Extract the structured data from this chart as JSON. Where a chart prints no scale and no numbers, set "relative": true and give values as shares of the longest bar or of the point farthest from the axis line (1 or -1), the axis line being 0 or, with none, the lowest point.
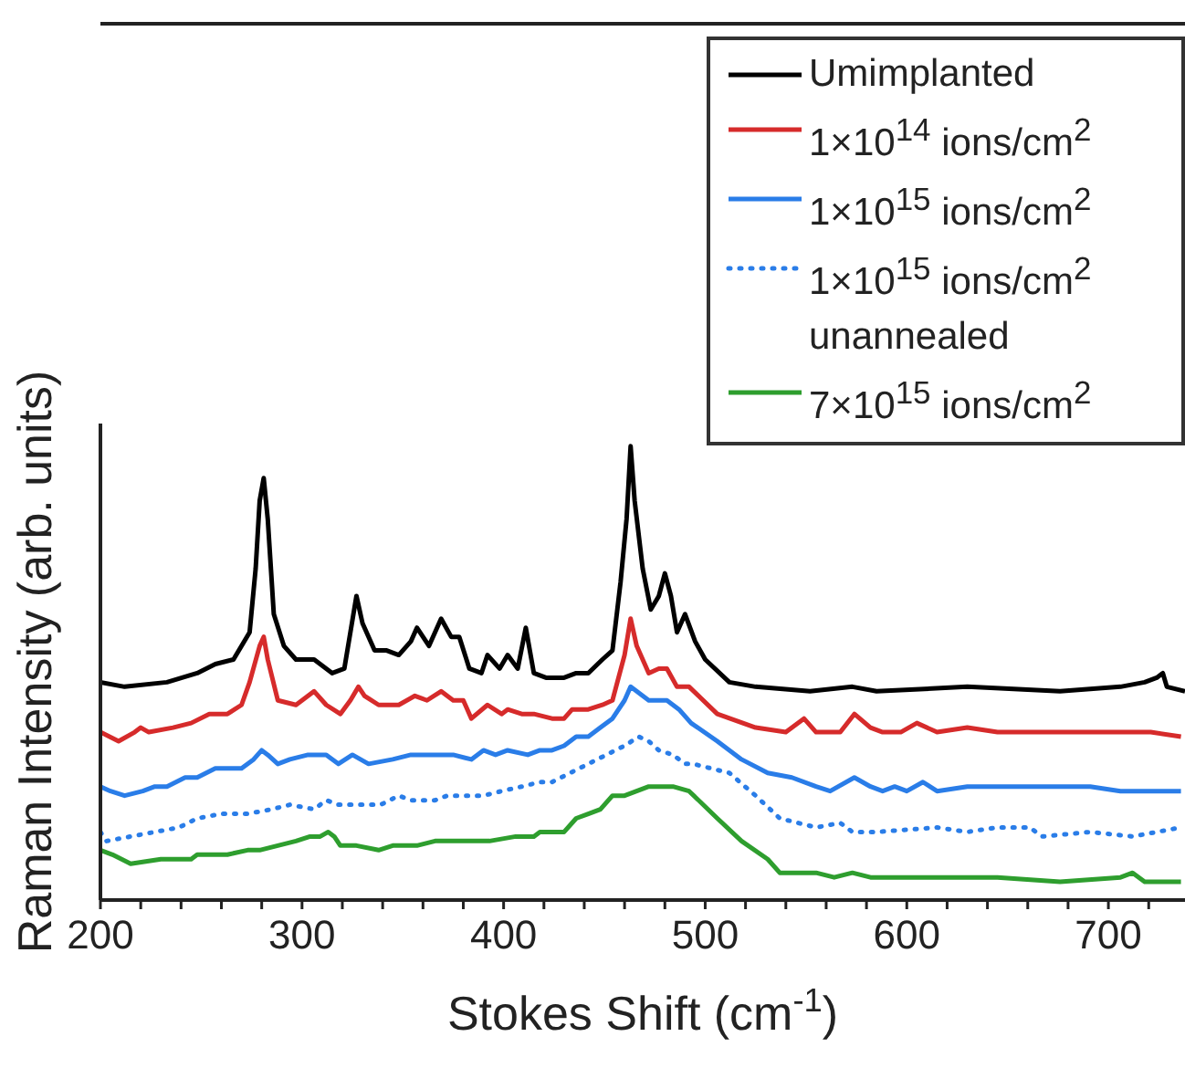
{
  "chart_data": {
    "type": "line",
    "xlabel": "Stokes Shift (cm$^{-1}$)",
    "ylabel": "Raman Intensity (arb. units)",
    "relative": true,
    "tick_labels": "x",
    "marker": "none",
    "legend": "top right",
    "xlim": [
      200,
      738
    ],
    "xticks": [
      200,
      {
        "value": 220,
        "label": null
      },
      {
        "value": 240,
        "label": null
      },
      {
        "value": 260,
        "label": null
      },
      {
        "value": 280,
        "label": null
      },
      300,
      {
        "value": 320,
        "label": null
      },
      {
        "value": 340,
        "label": null
      },
      {
        "value": 360,
        "label": null
      },
      {
        "value": 380,
        "label": null
      },
      400,
      {
        "value": 420,
        "label": null
      },
      {
        "value": 440,
        "label": null
      },
      {
        "value": 460,
        "label": null
      },
      {
        "value": 480,
        "label": null
      },
      500,
      {
        "value": 520,
        "label": null
      },
      {
        "value": 540,
        "label": null
      },
      {
        "value": 560,
        "label": null
      },
      {
        "value": 580,
        "label": null
      },
      600,
      {
        "value": 620,
        "label": null
      },
      {
        "value": 640,
        "label": null
      },
      {
        "value": 660,
        "label": null
      },
      {
        "value": 680,
        "label": null
      },
      700,
      {
        "value": 720,
        "label": null
      }
    ],
    "series": [
      {
        "name": "Umimplanted",
        "color": "#000000",
        "line_style": "solid",
        "x": [
          200,
          212,
          233,
          248,
          257,
          266,
          274,
          277,
          279,
          281,
          283,
          286,
          291,
          297,
          306,
          315,
          321,
          324,
          327,
          330,
          336,
          342,
          348,
          354,
          357,
          363,
          369,
          374,
          378,
          383,
          389,
          392,
          398,
          402,
          407,
          411,
          415,
          421,
          430,
          436,
          442,
          449,
          454,
          458,
          461,
          463,
          465,
          469,
          473,
          477,
          480,
          483,
          486,
          490,
          495,
          500,
          512,
          525,
          552,
          573,
          585,
          630,
          676,
          706,
          718,
          724,
          727,
          729,
          738
        ],
        "values": [
          0.48,
          0.47,
          0.48,
          0.5,
          0.52,
          0.53,
          0.59,
          0.73,
          0.88,
          0.93,
          0.84,
          0.63,
          0.56,
          0.53,
          0.53,
          0.5,
          0.51,
          0.59,
          0.67,
          0.61,
          0.55,
          0.55,
          0.54,
          0.57,
          0.6,
          0.56,
          0.62,
          0.58,
          0.58,
          0.51,
          0.5,
          0.54,
          0.51,
          0.54,
          0.51,
          0.6,
          0.5,
          0.49,
          0.49,
          0.5,
          0.5,
          0.53,
          0.55,
          0.7,
          0.84,
          1.0,
          0.88,
          0.73,
          0.64,
          0.67,
          0.72,
          0.67,
          0.59,
          0.63,
          0.57,
          0.53,
          0.48,
          0.47,
          0.46,
          0.47,
          0.46,
          0.47,
          0.46,
          0.47,
          0.48,
          0.49,
          0.5,
          0.47,
          0.46
        ]
      },
      {
        "name": "1×10$^{14}$ ions/cm$^{2}$",
        "color": "#d62b2b",
        "line_style": "solid",
        "x": [
          200,
          209,
          217,
          220,
          224,
          236,
          245,
          254,
          263,
          270,
          274,
          279,
          281,
          283,
          288,
          297,
          306,
          312,
          319,
          324,
          328,
          331,
          338,
          348,
          356,
          362,
          369,
          375,
          380,
          384,
          392,
          399,
          402,
          409,
          415,
          424,
          430,
          434,
          442,
          449,
          454,
          460,
          463,
          466,
          472,
          477,
          481,
          486,
          492,
          506,
          525,
          540,
          549,
          555,
          567,
          574,
          582,
          588,
          597,
          605,
          615,
          630,
          645,
          661,
          676,
          691,
          706,
          721,
          736
        ],
        "values": [
          0.37,
          0.35,
          0.37,
          0.38,
          0.37,
          0.38,
          0.39,
          0.41,
          0.41,
          0.43,
          0.48,
          0.56,
          0.58,
          0.53,
          0.44,
          0.43,
          0.46,
          0.43,
          0.41,
          0.44,
          0.47,
          0.45,
          0.43,
          0.43,
          0.45,
          0.44,
          0.46,
          0.44,
          0.44,
          0.4,
          0.43,
          0.41,
          0.42,
          0.41,
          0.41,
          0.4,
          0.4,
          0.42,
          0.42,
          0.43,
          0.44,
          0.54,
          0.62,
          0.56,
          0.5,
          0.51,
          0.51,
          0.47,
          0.47,
          0.41,
          0.38,
          0.37,
          0.4,
          0.37,
          0.37,
          0.41,
          0.38,
          0.37,
          0.37,
          0.39,
          0.37,
          0.38,
          0.37,
          0.37,
          0.37,
          0.37,
          0.37,
          0.37,
          0.36
        ]
      },
      {
        "name": "1×10$^{15}$ ions/cm$^{2}$",
        "color": "#2a7de8",
        "line_style": "solid",
        "x": [
          200,
          205,
          212,
          221,
          227,
          233,
          242,
          248,
          257,
          263,
          270,
          276,
          280,
          283,
          288,
          294,
          303,
          312,
          318,
          325,
          333,
          345,
          354,
          363,
          375,
          384,
          390,
          396,
          402,
          412,
          418,
          424,
          430,
          436,
          442,
          448,
          454,
          460,
          463,
          466,
          472,
          478,
          481,
          487,
          493,
          506,
          518,
          531,
          543,
          555,
          562,
          574,
          582,
          588,
          594,
          600,
          608,
          615,
          630,
          645,
          661,
          676,
          691,
          706,
          721,
          736
        ],
        "values": [
          0.25,
          0.24,
          0.23,
          0.24,
          0.25,
          0.25,
          0.27,
          0.27,
          0.29,
          0.29,
          0.29,
          0.31,
          0.33,
          0.32,
          0.3,
          0.31,
          0.32,
          0.32,
          0.3,
          0.32,
          0.3,
          0.31,
          0.32,
          0.32,
          0.32,
          0.31,
          0.33,
          0.32,
          0.33,
          0.32,
          0.33,
          0.33,
          0.34,
          0.36,
          0.36,
          0.38,
          0.4,
          0.44,
          0.47,
          0.46,
          0.44,
          0.44,
          0.44,
          0.42,
          0.39,
          0.35,
          0.31,
          0.28,
          0.27,
          0.25,
          0.24,
          0.27,
          0.25,
          0.24,
          0.25,
          0.24,
          0.26,
          0.24,
          0.25,
          0.25,
          0.25,
          0.25,
          0.25,
          0.24,
          0.24,
          0.24
        ]
      },
      {
        "name": "1×10$^{15}$ ions/cm$^{2}$ unannealed",
        "color": "#2a7de8",
        "line_style": "dotted",
        "x": [
          200,
          203,
          215,
          227,
          239,
          248,
          260,
          273,
          285,
          294,
          306,
          312,
          318,
          333,
          339,
          348,
          354,
          366,
          372,
          381,
          390,
          399,
          409,
          418,
          424,
          433,
          442,
          451,
          460,
          467,
          472,
          477,
          484,
          490,
          494,
          512,
          525,
          537,
          546,
          555,
          567,
          573,
          585,
          615,
          630,
          645,
          661,
          667,
          691,
          712,
          736
        ],
        "values": [
          0.15,
          0.13,
          0.14,
          0.15,
          0.16,
          0.18,
          0.19,
          0.19,
          0.2,
          0.21,
          0.2,
          0.22,
          0.21,
          0.21,
          0.21,
          0.23,
          0.22,
          0.22,
          0.23,
          0.23,
          0.23,
          0.24,
          0.25,
          0.26,
          0.26,
          0.28,
          0.3,
          0.32,
          0.34,
          0.36,
          0.35,
          0.33,
          0.32,
          0.3,
          0.3,
          0.28,
          0.23,
          0.18,
          0.17,
          0.16,
          0.17,
          0.15,
          0.15,
          0.16,
          0.15,
          0.16,
          0.16,
          0.14,
          0.15,
          0.14,
          0.16
        ]
      },
      {
        "name": "7×10$^{15}$ ions/cm$^{2}$",
        "color": "#2e9e2e",
        "line_style": "solid",
        "x": [
          200,
          206,
          215,
          230,
          245,
          248,
          254,
          263,
          273,
          279,
          288,
          297,
          304,
          309,
          313,
          316,
          319,
          327,
          338,
          345,
          357,
          366,
          381,
          393,
          406,
          415,
          418,
          430,
          436,
          442,
          448,
          454,
          460,
          466,
          472,
          480,
          484,
          492,
          506,
          518,
          531,
          537,
          555,
          564,
          573,
          582,
          600,
          615,
          645,
          676,
          706,
          712,
          718,
          736
        ],
        "values": [
          0.11,
          0.1,
          0.08,
          0.09,
          0.09,
          0.1,
          0.1,
          0.1,
          0.11,
          0.11,
          0.12,
          0.13,
          0.14,
          0.14,
          0.15,
          0.14,
          0.12,
          0.12,
          0.11,
          0.12,
          0.12,
          0.13,
          0.13,
          0.13,
          0.14,
          0.14,
          0.15,
          0.15,
          0.18,
          0.19,
          0.2,
          0.23,
          0.23,
          0.24,
          0.25,
          0.25,
          0.25,
          0.24,
          0.18,
          0.13,
          0.09,
          0.06,
          0.06,
          0.05,
          0.06,
          0.05,
          0.05,
          0.05,
          0.05,
          0.04,
          0.05,
          0.06,
          0.04,
          0.04
        ]
      }
    ]
  }
}
